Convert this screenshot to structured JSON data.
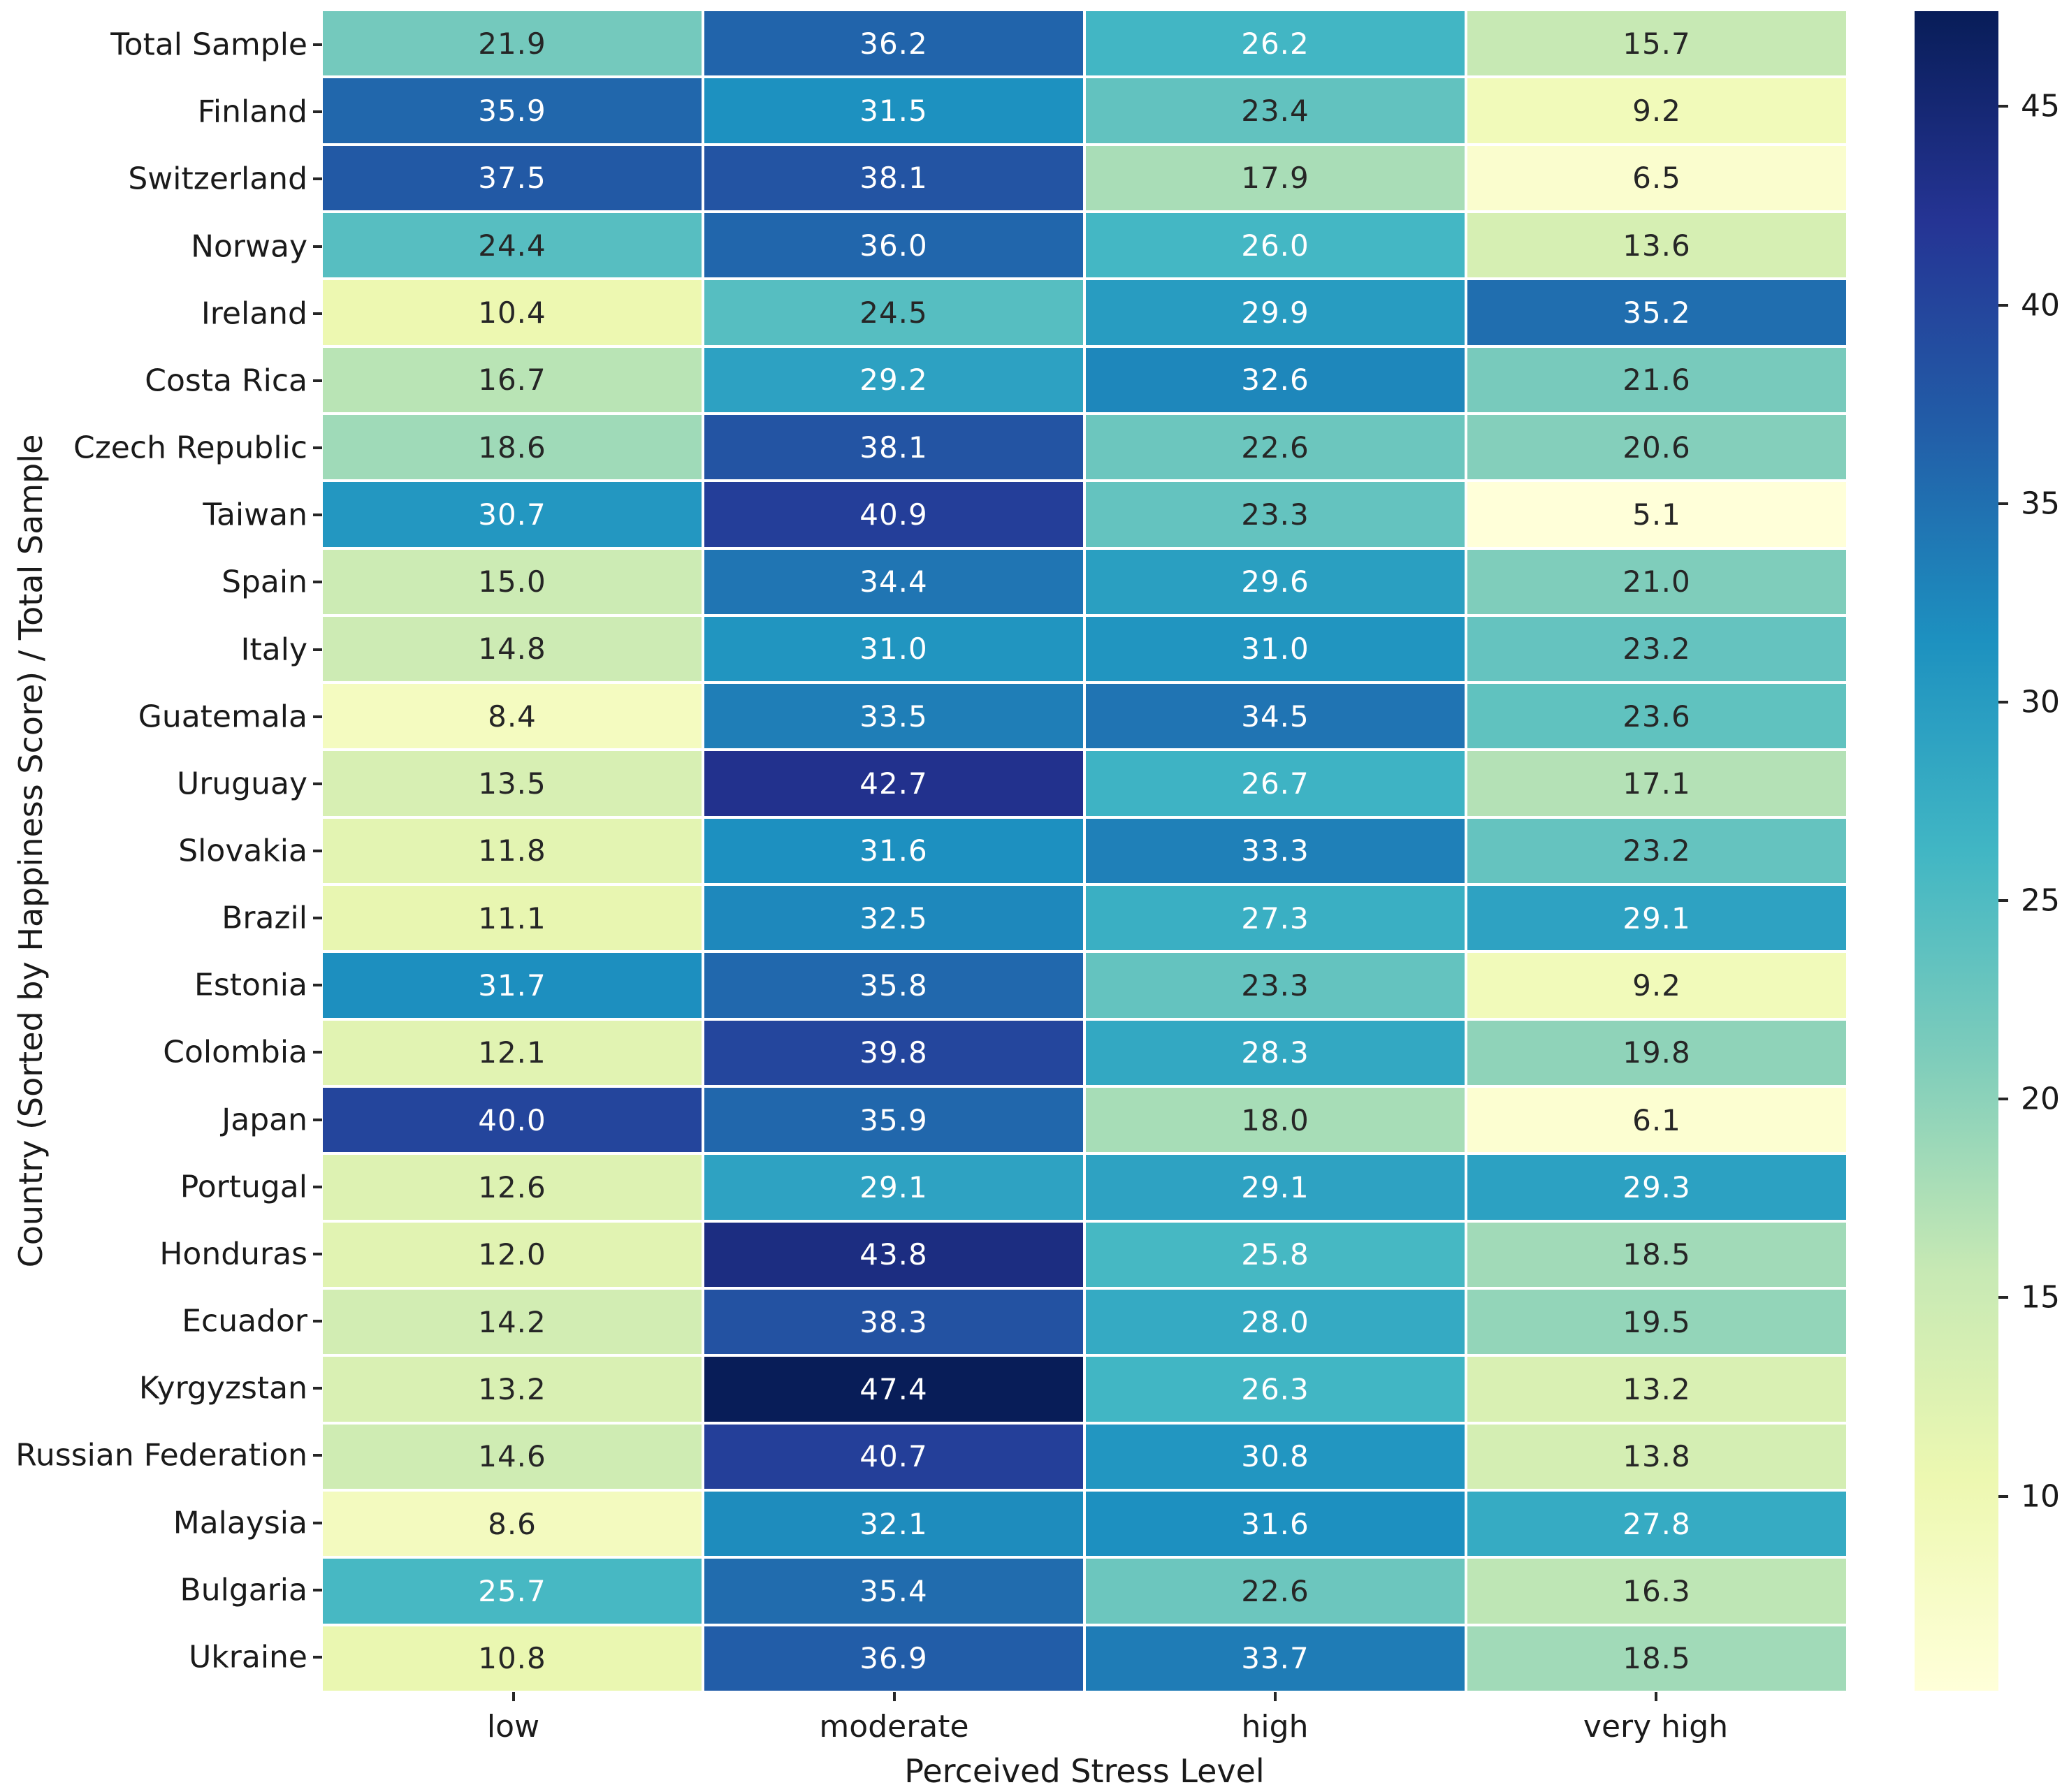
{
  "chart_data": {
    "type": "heatmap",
    "xlabel": "Perceived Stress Level",
    "ylabel": "Country (Sorted by Happiness Score) / Total Sample",
    "columns": [
      "low",
      "moderate",
      "high",
      "very high"
    ],
    "rows": [
      "Total Sample",
      "Finland",
      "Switzerland",
      "Norway",
      "Ireland",
      "Costa Rica",
      "Czech Republic",
      "Taiwan",
      "Spain",
      "Italy",
      "Guatemala",
      "Uruguay",
      "Slovakia",
      "Brazil",
      "Estonia",
      "Colombia",
      "Japan",
      "Portugal",
      "Honduras",
      "Ecuador",
      "Kyrgyzstan",
      "Russian Federation",
      "Malaysia",
      "Bulgaria",
      "Ukraine"
    ],
    "values": [
      [
        21.9,
        36.2,
        26.2,
        15.7
      ],
      [
        35.9,
        31.5,
        23.4,
        9.2
      ],
      [
        37.5,
        38.1,
        17.9,
        6.5
      ],
      [
        24.4,
        36.0,
        26.0,
        13.6
      ],
      [
        10.4,
        24.5,
        29.9,
        35.2
      ],
      [
        16.7,
        29.2,
        32.6,
        21.6
      ],
      [
        18.6,
        38.1,
        22.6,
        20.6
      ],
      [
        30.7,
        40.9,
        23.3,
        5.1
      ],
      [
        15.0,
        34.4,
        29.6,
        21.0
      ],
      [
        14.8,
        31.0,
        31.0,
        23.2
      ],
      [
        8.4,
        33.5,
        34.5,
        23.6
      ],
      [
        13.5,
        42.7,
        26.7,
        17.1
      ],
      [
        11.8,
        31.6,
        33.3,
        23.2
      ],
      [
        11.1,
        32.5,
        27.3,
        29.1
      ],
      [
        31.7,
        35.8,
        23.3,
        9.2
      ],
      [
        12.1,
        39.8,
        28.3,
        19.8
      ],
      [
        40.0,
        35.9,
        18.0,
        6.1
      ],
      [
        12.6,
        29.1,
        29.1,
        29.3
      ],
      [
        12.0,
        43.8,
        25.8,
        18.5
      ],
      [
        14.2,
        38.3,
        28.0,
        19.5
      ],
      [
        13.2,
        47.4,
        26.3,
        13.2
      ],
      [
        14.6,
        40.7,
        30.8,
        13.8
      ],
      [
        8.6,
        32.1,
        31.6,
        27.8
      ],
      [
        25.7,
        35.4,
        22.6,
        16.3
      ],
      [
        10.8,
        36.9,
        33.7,
        18.5
      ]
    ],
    "value_decimals": 1,
    "vmin": 5.1,
    "vmax": 47.4,
    "colormap": {
      "name": "YlGnBu",
      "stops": [
        "#ffffd9",
        "#edf8b1",
        "#c7e9b4",
        "#7fcdbb",
        "#41b6c4",
        "#1d91c0",
        "#225ea8",
        "#253494",
        "#081d58"
      ]
    },
    "annotation_text_colors": {
      "dark": "#262626",
      "light": "#ffffff"
    },
    "colorbar_ticks": [
      45,
      40,
      35,
      30,
      25,
      20,
      15,
      10
    ],
    "legend_position": "right",
    "grid": false
  }
}
